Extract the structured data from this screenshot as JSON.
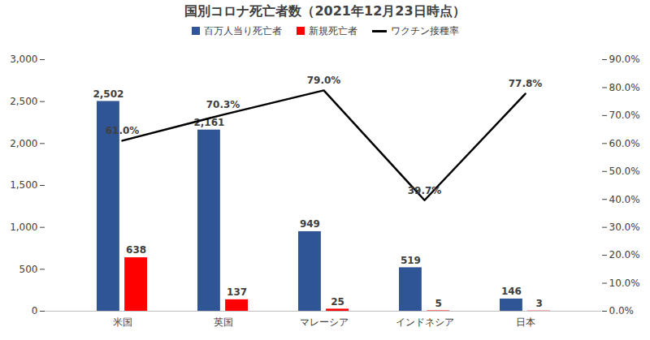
{
  "chart_data": {
    "type": "bar",
    "title": "国別コロナ死亡者数（2021年12月23日時点）",
    "categories": [
      "米国",
      "英国",
      "マレーシア",
      "インドネシア",
      "日本"
    ],
    "series": [
      {
        "name": "百万人当り死亡者",
        "color": "#2f5597",
        "values": [
          2502,
          2161,
          949,
          519,
          146
        ],
        "value_labels": [
          "2,502",
          "2,161",
          "949",
          "519",
          "146"
        ]
      },
      {
        "name": "新規死亡者",
        "color": "#ff0000",
        "values": [
          638,
          137,
          25,
          5,
          3
        ]
      },
      {
        "name": "ワクチン接種率",
        "type": "line",
        "axis": "y2",
        "color": "#000000",
        "values": [
          61.0,
          70.3,
          79.0,
          39.7,
          77.8
        ],
        "value_labels": [
          "61.0%",
          "70.3%",
          "79.0%",
          "39.7%",
          "77.8%"
        ]
      }
    ],
    "ylim": [
      0,
      3000
    ],
    "yticks": [
      0,
      500,
      {
        "value": 1000,
        "label": "1,000"
      },
      {
        "value": 1500,
        "label": "1,500"
      },
      {
        "value": 2000,
        "label": "2,000"
      },
      {
        "value": 2500,
        "label": "2,500"
      },
      {
        "value": 3000,
        "label": "3,000"
      }
    ],
    "y2lim": [
      0,
      90
    ],
    "y2ticks": [
      {
        "value": 0,
        "label": "0.0%"
      },
      {
        "value": 10,
        "label": "10.0%"
      },
      {
        "value": 20,
        "label": "20.0%"
      },
      {
        "value": 30,
        "label": "30.0%"
      },
      {
        "value": 40,
        "label": "40.0%"
      },
      {
        "value": 50,
        "label": "50.0%"
      },
      {
        "value": 60,
        "label": "60.0%"
      },
      {
        "value": 70,
        "label": "70.0%"
      },
      {
        "value": 80,
        "label": "80.0%"
      },
      {
        "value": 90,
        "label": "90.0%"
      }
    ],
    "data_labels": true,
    "legend": "top",
    "grid": false
  }
}
